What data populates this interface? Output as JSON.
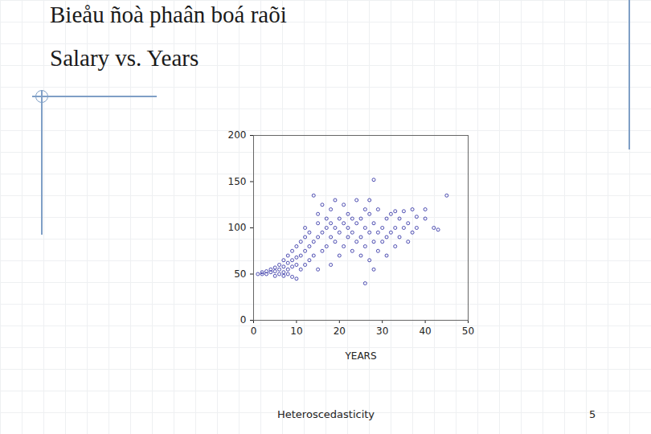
{
  "chart_data": {
    "type": "scatter",
    "title": "Bieåu ñoà phaân boá raõi",
    "subtitle": "Salary vs. Years",
    "xlabel": "YEARS",
    "color": "#3a3aa8",
    "marker": "open_circle",
    "xlim": [
      0,
      50
    ],
    "ylim": [
      0,
      200
    ],
    "xticks": [
      0,
      10,
      20,
      30,
      40,
      50
    ],
    "yticks": [
      0,
      50,
      100,
      150,
      200
    ],
    "x": [
      1,
      2,
      2,
      3,
      3,
      4,
      4,
      5,
      5,
      5,
      6,
      6,
      6,
      7,
      7,
      7,
      7,
      8,
      8,
      8,
      8,
      9,
      9,
      9,
      9,
      10,
      10,
      10,
      10,
      11,
      11,
      11,
      12,
      12,
      12,
      12,
      13,
      13,
      13,
      14,
      14,
      14,
      15,
      15,
      15,
      15,
      16,
      16,
      16,
      17,
      17,
      17,
      18,
      18,
      18,
      18,
      19,
      19,
      19,
      20,
      20,
      20,
      21,
      21,
      21,
      22,
      22,
      22,
      23,
      23,
      23,
      24,
      24,
      24,
      25,
      25,
      25,
      26,
      26,
      26,
      26,
      27,
      27,
      27,
      27,
      28,
      28,
      28,
      28,
      29,
      29,
      29,
      30,
      30,
      31,
      31,
      31,
      32,
      32,
      33,
      33,
      33,
      34,
      34,
      35,
      35,
      36,
      36,
      37,
      37,
      38,
      38,
      40,
      40,
      42,
      43,
      45
    ],
    "y": [
      50,
      50,
      52,
      50,
      53,
      52,
      55,
      48,
      53,
      57,
      50,
      55,
      60,
      48,
      52,
      58,
      65,
      50,
      55,
      62,
      70,
      47,
      58,
      65,
      75,
      45,
      60,
      68,
      80,
      55,
      70,
      85,
      60,
      75,
      90,
      100,
      65,
      80,
      95,
      70,
      85,
      135,
      55,
      90,
      105,
      115,
      75,
      95,
      125,
      80,
      100,
      110,
      60,
      90,
      105,
      120,
      85,
      100,
      130,
      70,
      95,
      110,
      80,
      105,
      125,
      90,
      100,
      115,
      75,
      95,
      110,
      85,
      105,
      130,
      70,
      90,
      110,
      40,
      80,
      100,
      120,
      65,
      95,
      115,
      130,
      55,
      85,
      105,
      152,
      75,
      95,
      120,
      85,
      100,
      70,
      90,
      110,
      95,
      115,
      80,
      100,
      118,
      90,
      110,
      100,
      118,
      85,
      105,
      95,
      120,
      112,
      100,
      110,
      120,
      100,
      98,
      135
    ]
  },
  "slide": {
    "footer": "Heteroscedasticity",
    "page_number": 5
  }
}
